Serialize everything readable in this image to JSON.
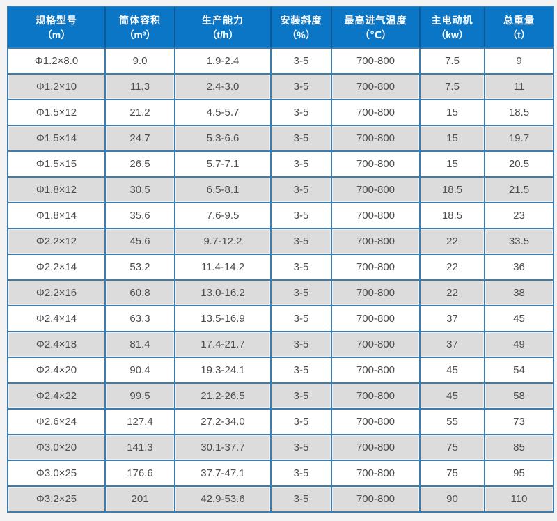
{
  "colors": {
    "page_bg": "#f3f3f3",
    "header_bg": "#0b76c6",
    "header_divider": "#0d5a99",
    "grid_border": "#3e7cab",
    "row_alt_bg": "#dcdcdc",
    "row_alt_edge": "#f0f0f0",
    "body_text": "#4d4d4d",
    "header_text": "#ffffff"
  },
  "table": {
    "columns": [
      {
        "name": "规格型号",
        "unit": "（m）"
      },
      {
        "name": "筒体容积",
        "unit": "（m³）"
      },
      {
        "name": "生产能力",
        "unit": "（t/h）"
      },
      {
        "name": "安装斜度",
        "unit": "（%）"
      },
      {
        "name": "最高进气温度",
        "unit": "（℃）"
      },
      {
        "name": "主电动机",
        "unit": "（kw）"
      },
      {
        "name": "总重量",
        "unit": "（t）"
      }
    ],
    "rows": [
      [
        "Φ1.2×8.0",
        "9.0",
        "1.9-2.4",
        "3-5",
        "700-800",
        "7.5",
        "9"
      ],
      [
        "Φ1.2×10",
        "11.3",
        "2.4-3.0",
        "3-5",
        "700-800",
        "7.5",
        "11"
      ],
      [
        "Φ1.5×12",
        "21.2",
        "4.5-5.7",
        "3-5",
        "700-800",
        "15",
        "18.5"
      ],
      [
        "Φ1.5×14",
        "24.7",
        "5.3-6.6",
        "3-5",
        "700-800",
        "15",
        "19.7"
      ],
      [
        "Φ1.5×15",
        "26.5",
        "5.7-7.1",
        "3-5",
        "700-800",
        "15",
        "20.5"
      ],
      [
        "Φ1.8×12",
        "30.5",
        "6.5-8.1",
        "3-5",
        "700-800",
        "18.5",
        "21.5"
      ],
      [
        "Φ1.8×14",
        "35.6",
        "7.6-9.5",
        "3-5",
        "700-800",
        "18.5",
        "23"
      ],
      [
        "Φ2.2×12",
        "45.6",
        "9.7-12.2",
        "3-5",
        "700-800",
        "22",
        "33.5"
      ],
      [
        "Φ2.2×14",
        "53.2",
        "11.4-14.2",
        "3-5",
        "700-800",
        "22",
        "36"
      ],
      [
        "Φ2.2×16",
        "60.8",
        "13.0-16.2",
        "3-5",
        "700-800",
        "22",
        "38"
      ],
      [
        "Φ2.4×14",
        "63.3",
        "13.5-16.9",
        "3-5",
        "700-800",
        "37",
        "45"
      ],
      [
        "Φ2.4×18",
        "81.4",
        "17.4-21.7",
        "3-5",
        "700-800",
        "37",
        "49"
      ],
      [
        "Φ2.4×20",
        "90.4",
        "19.3-24.1",
        "3-5",
        "700-800",
        "45",
        "54"
      ],
      [
        "Φ2.4×22",
        "99.5",
        "21.2-26.5",
        "3-5",
        "700-800",
        "45",
        "58"
      ],
      [
        "Φ2.6×24",
        "127.4",
        "27.2-34.0",
        "3-5",
        "700-800",
        "55",
        "73"
      ],
      [
        "Φ3.0×20",
        "141.3",
        "30.1-37.7",
        "3-5",
        "700-800",
        "75",
        "85"
      ],
      [
        "Φ3.0×25",
        "176.6",
        "37.7-47.1",
        "3-5",
        "700-800",
        "75",
        "95"
      ],
      [
        "Φ3.2×25",
        "201",
        "42.9-53.6",
        "3-5",
        "700-800",
        "90",
        "110"
      ]
    ]
  }
}
